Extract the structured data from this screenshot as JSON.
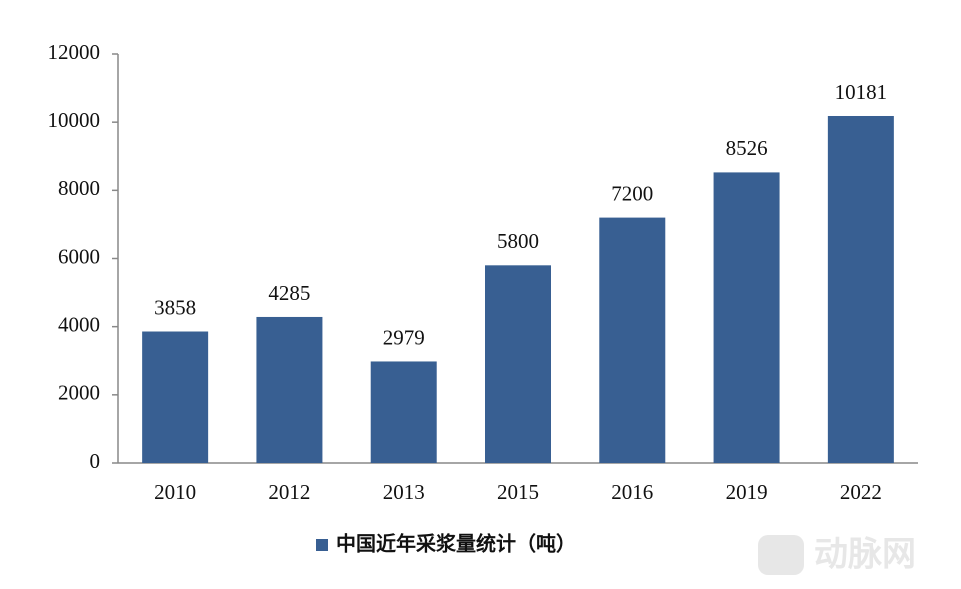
{
  "chart_data": {
    "type": "bar",
    "categories": [
      "2010",
      "2012",
      "2013",
      "2015",
      "2016",
      "2019",
      "2022"
    ],
    "series": [
      {
        "name": "中国近年采浆量统计（吨）",
        "color": "#385f92",
        "values": [
          3858,
          4285,
          2979,
          5800,
          7200,
          8526,
          10181
        ]
      }
    ],
    "ylim": [
      0,
      12000
    ],
    "yticks": [
      0,
      2000,
      4000,
      6000,
      8000,
      10000,
      12000
    ],
    "grid": false,
    "legend": "bottom",
    "data_labels": true,
    "watermark": "动脉网"
  }
}
